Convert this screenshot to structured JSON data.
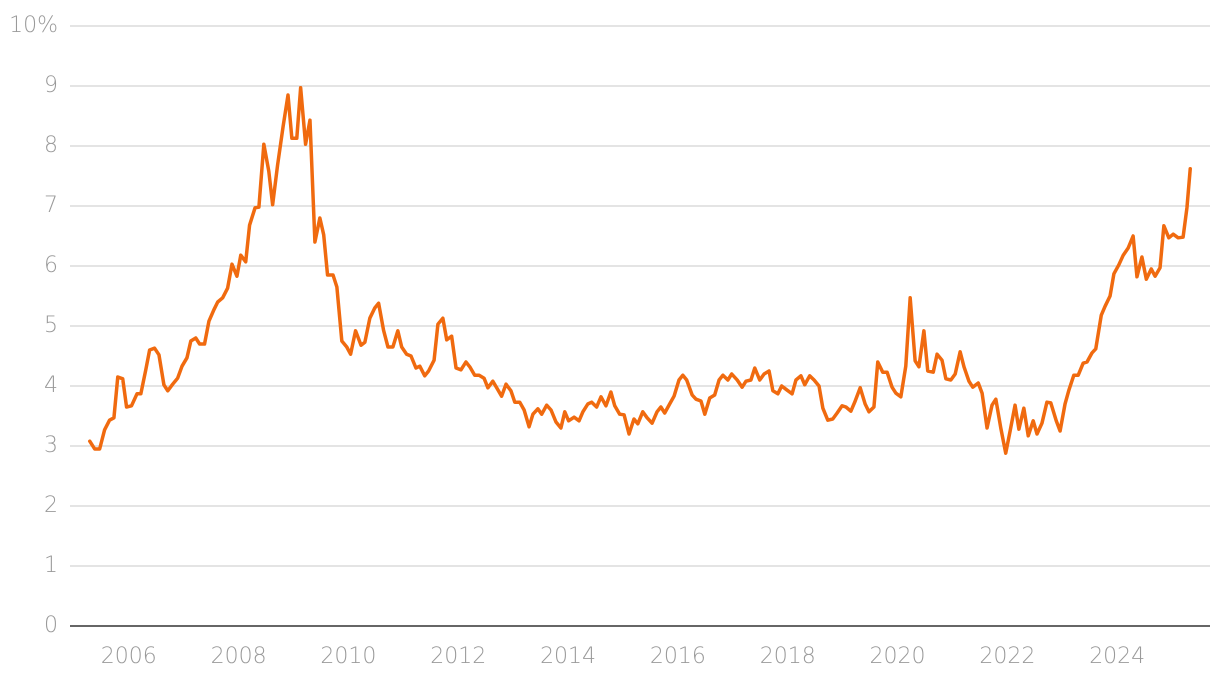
{
  "chart_data": {
    "type": "line",
    "color": "#f06a0f",
    "grid": true,
    "xlim": [
      2004.93,
      2025.69
    ],
    "xticks": [
      2006,
      2008,
      2010,
      2012,
      2014,
      2016,
      2018,
      2020,
      2022,
      2024
    ],
    "ylim": [
      0,
      10
    ],
    "yticks": [
      0,
      1,
      2,
      3,
      4,
      5,
      6,
      7,
      8,
      9,
      {
        "value": 10,
        "label": "10%"
      }
    ],
    "x": [
      2005.29,
      2005.38,
      2005.47,
      2005.56,
      2005.65,
      2005.73,
      2005.8,
      2005.89,
      2005.96,
      2006.05,
      2006.15,
      2006.22,
      2006.31,
      2006.38,
      2006.47,
      2006.55,
      2006.64,
      2006.71,
      2006.8,
      2006.89,
      2006.97,
      2007.06,
      2007.13,
      2007.22,
      2007.29,
      2007.38,
      2007.46,
      2007.55,
      2007.62,
      2007.71,
      2007.8,
      2007.88,
      2007.97,
      2008.04,
      2008.13,
      2008.2,
      2008.3,
      2008.37,
      2008.46,
      2008.55,
      2008.62,
      2008.71,
      2008.81,
      2008.9,
      2008.97,
      2009.06,
      2009.13,
      2009.22,
      2009.3,
      2009.39,
      2009.48,
      2009.55,
      2009.62,
      2009.72,
      2009.79,
      2009.88,
      2009.97,
      2010.04,
      2010.13,
      2010.23,
      2010.3,
      2010.39,
      2010.48,
      2010.55,
      2010.64,
      2010.72,
      2010.81,
      2010.9,
      2010.97,
      2011.06,
      2011.14,
      2011.23,
      2011.3,
      2011.39,
      2011.46,
      2011.56,
      2011.63,
      2011.72,
      2011.79,
      2011.88,
      2011.96,
      2012.05,
      2012.14,
      2012.21,
      2012.3,
      2012.38,
      2012.47,
      2012.54,
      2012.63,
      2012.7,
      2012.79,
      2012.87,
      2012.96,
      2013.03,
      2013.12,
      2013.2,
      2013.29,
      2013.36,
      2013.45,
      2013.52,
      2013.61,
      2013.69,
      2013.78,
      2013.87,
      2013.94,
      2014.01,
      2014.11,
      2014.2,
      2014.27,
      2014.36,
      2014.43,
      2014.52,
      2014.6,
      2014.69,
      2014.78,
      2014.85,
      2014.94,
      2015.02,
      2015.11,
      2015.2,
      2015.27,
      2015.36,
      2015.44,
      2015.53,
      2015.62,
      2015.69,
      2015.76,
      2015.85,
      2015.93,
      2016.02,
      2016.09,
      2016.16,
      2016.26,
      2016.33,
      2016.42,
      2016.49,
      2016.58,
      2016.67,
      2016.75,
      2016.82,
      2016.91,
      2016.98,
      2017.08,
      2017.17,
      2017.24,
      2017.33,
      2017.4,
      2017.49,
      2017.57,
      2017.66,
      2017.73,
      2017.82,
      2017.89,
      2017.99,
      2018.08,
      2018.15,
      2018.24,
      2018.31,
      2018.4,
      2018.48,
      2018.57,
      2018.64,
      2018.73,
      2018.82,
      2018.9,
      2018.99,
      2019.06,
      2019.15,
      2019.22,
      2019.32,
      2019.41,
      2019.48,
      2019.57,
      2019.64,
      2019.73,
      2019.81,
      2019.9,
      2019.97,
      2020.06,
      2020.15,
      2020.23,
      2020.32,
      2020.39,
      2020.48,
      2020.55,
      2020.65,
      2020.72,
      2020.81,
      2020.88,
      2020.97,
      2021.05,
      2021.14,
      2021.21,
      2021.3,
      2021.37,
      2021.47,
      2021.54,
      2021.63,
      2021.72,
      2021.79,
      2021.88,
      2021.97,
      2022.05,
      2022.14,
      2022.21,
      2022.3,
      2022.38,
      2022.47,
      2022.54,
      2022.63,
      2022.72,
      2022.79,
      2022.89,
      2022.96,
      2023.05,
      2023.12,
      2023.21,
      2023.29,
      2023.38,
      2023.45,
      2023.54,
      2023.61,
      2023.71,
      2023.78,
      2023.87,
      2023.94,
      2024.03,
      2024.11,
      2024.2,
      2024.29,
      2024.36,
      2024.45,
      2024.53,
      2024.62,
      2024.69,
      2024.78,
      2024.85,
      2024.94,
      2025.02,
      2025.11,
      2025.2,
      2025.27,
      2025.33
    ],
    "values": [
      3.08,
      2.95,
      2.95,
      3.27,
      3.43,
      3.47,
      4.15,
      4.12,
      3.65,
      3.67,
      3.87,
      3.87,
      4.27,
      4.6,
      4.63,
      4.52,
      4.02,
      3.92,
      4.03,
      4.13,
      4.33,
      4.47,
      4.75,
      4.8,
      4.7,
      4.7,
      5.08,
      5.27,
      5.4,
      5.47,
      5.63,
      6.03,
      5.83,
      6.18,
      6.07,
      6.68,
      6.97,
      6.98,
      8.03,
      7.58,
      7.02,
      7.68,
      8.32,
      8.85,
      8.13,
      8.13,
      8.97,
      8.03,
      8.43,
      6.4,
      6.8,
      6.52,
      5.85,
      5.85,
      5.65,
      4.75,
      4.65,
      4.53,
      4.92,
      4.68,
      4.73,
      5.13,
      5.3,
      5.38,
      4.93,
      4.65,
      4.65,
      4.92,
      4.65,
      4.53,
      4.5,
      4.3,
      4.33,
      4.17,
      4.25,
      4.43,
      5.03,
      5.13,
      4.77,
      4.83,
      4.3,
      4.27,
      4.4,
      4.32,
      4.18,
      4.18,
      4.13,
      3.97,
      4.08,
      3.97,
      3.83,
      4.03,
      3.92,
      3.73,
      3.73,
      3.6,
      3.32,
      3.53,
      3.62,
      3.53,
      3.68,
      3.6,
      3.4,
      3.3,
      3.57,
      3.42,
      3.48,
      3.42,
      3.57,
      3.7,
      3.73,
      3.65,
      3.82,
      3.67,
      3.9,
      3.67,
      3.53,
      3.52,
      3.2,
      3.45,
      3.37,
      3.57,
      3.47,
      3.38,
      3.57,
      3.65,
      3.55,
      3.7,
      3.83,
      4.1,
      4.18,
      4.1,
      3.85,
      3.78,
      3.75,
      3.53,
      3.8,
      3.85,
      4.1,
      4.18,
      4.1,
      4.2,
      4.1,
      3.98,
      4.08,
      4.1,
      4.3,
      4.1,
      4.2,
      4.25,
      3.92,
      3.87,
      4.0,
      3.93,
      3.87,
      4.1,
      4.17,
      4.02,
      4.17,
      4.1,
      4.0,
      3.63,
      3.43,
      3.45,
      3.55,
      3.67,
      3.65,
      3.58,
      3.73,
      3.97,
      3.7,
      3.57,
      3.65,
      4.4,
      4.23,
      4.23,
      3.98,
      3.88,
      3.82,
      4.33,
      5.47,
      4.42,
      4.32,
      4.92,
      4.25,
      4.23,
      4.53,
      4.43,
      4.12,
      4.1,
      4.2,
      4.57,
      4.32,
      4.08,
      3.98,
      4.05,
      3.88,
      3.3,
      3.68,
      3.78,
      3.3,
      2.88,
      3.25,
      3.68,
      3.28,
      3.63,
      3.17,
      3.42,
      3.2,
      3.38,
      3.73,
      3.72,
      3.42,
      3.25,
      3.7,
      3.93,
      4.18,
      4.18,
      4.38,
      4.4,
      4.55,
      4.62,
      5.18,
      5.33,
      5.5,
      5.87,
      6.02,
      6.18,
      6.3,
      6.5,
      5.82,
      6.15,
      5.78,
      5.95,
      5.83,
      5.97,
      6.67,
      6.47,
      6.53,
      6.47,
      6.48,
      6.97,
      7.62
    ]
  }
}
